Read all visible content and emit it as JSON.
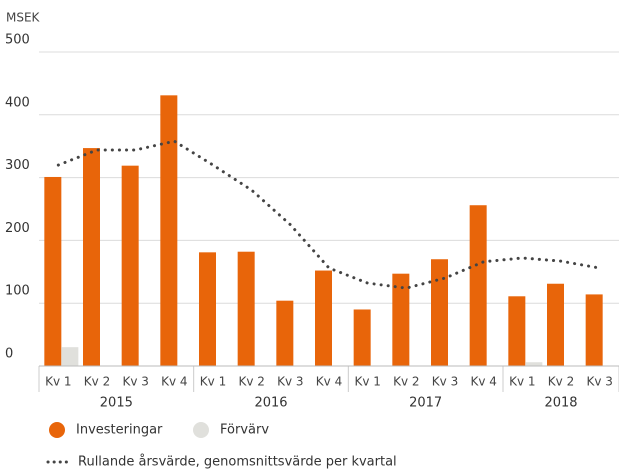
{
  "chart_data": {
    "type": "bar",
    "y_label": "MSEK",
    "ylim": [
      0,
      500
    ],
    "yticks": [
      0,
      100,
      200,
      300,
      400,
      500
    ],
    "grid": true,
    "groups": [
      {
        "label": "2015",
        "categories": [
          "Kv 1",
          "Kv 2",
          "Kv 3",
          "Kv 4"
        ]
      },
      {
        "label": "2016",
        "categories": [
          "Kv 1",
          "Kv 2",
          "Kv 3",
          "Kv 4"
        ]
      },
      {
        "label": "2017",
        "categories": [
          "Kv 1",
          "Kv 2",
          "Kv 3",
          "Kv 4"
        ]
      },
      {
        "label": "2018",
        "categories": [
          "Kv 1",
          "Kv 2",
          "Kv 3"
        ]
      }
    ],
    "series": [
      {
        "name": "Investeringar",
        "type": "bar",
        "color": "#e8650a",
        "values": [
          301,
          347,
          319,
          431,
          181,
          182,
          104,
          152,
          90,
          147,
          170,
          256,
          111,
          131,
          114
        ]
      },
      {
        "name": "Förvärv",
        "type": "bar",
        "color": "#e0e0dc",
        "values": [
          30,
          0,
          0,
          0,
          0,
          0,
          0,
          0,
          0,
          0,
          0,
          0,
          6,
          0,
          0
        ]
      },
      {
        "name": "Rullande årsvärde, genomsnittsvärde per kvartal",
        "type": "line",
        "color": "#444444",
        "values": [
          320,
          344,
          344,
          358,
          320,
          280,
          225,
          156,
          132,
          124,
          140,
          166,
          172,
          167,
          156
        ]
      }
    ]
  }
}
